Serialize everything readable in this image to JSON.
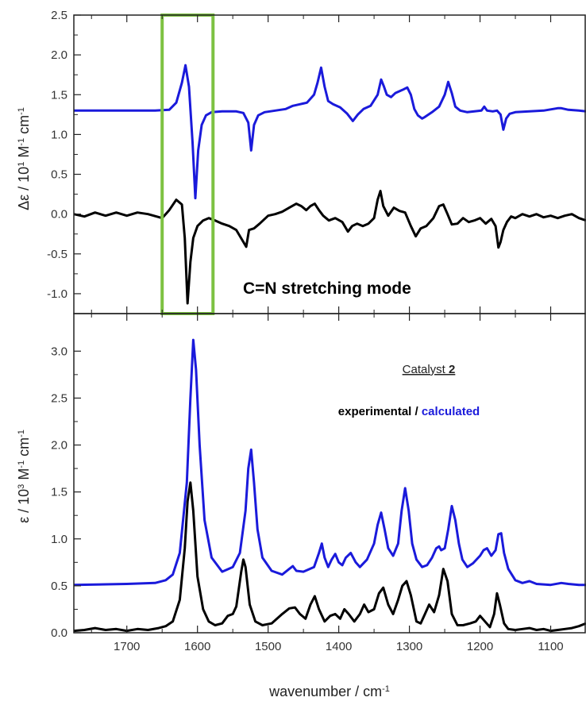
{
  "chart_data": [
    {
      "type": "line",
      "panel": "top",
      "ylabel": {
        "main": "Δε / 10",
        "sup1": "1",
        "mid": " M",
        "sup2": "-1",
        "end": " cm",
        "sup3": "-1"
      },
      "xlim": [
        1775,
        1050
      ],
      "ylim": [
        -1.25,
        2.5
      ],
      "y_ticks": [
        "2.5",
        "2.0",
        "1.5",
        "1.0",
        "0.5",
        "0.0",
        "-0.5",
        "-1.0"
      ],
      "y_tick_values": [
        2.5,
        2.0,
        1.5,
        1.0,
        0.5,
        0.0,
        -0.5,
        -1.0
      ],
      "annotation": "C=N stretching mode",
      "highlight_box": {
        "x_from": 1650,
        "x_to": 1578,
        "color": "#7dc242"
      },
      "series": [
        {
          "color": "#1a1adb",
          "x": [
            1775,
            1660,
            1640,
            1630,
            1622,
            1617,
            1612,
            1607,
            1603,
            1599,
            1594,
            1588,
            1580,
            1565,
            1545,
            1535,
            1528,
            1524,
            1520,
            1514,
            1505,
            1490,
            1475,
            1465,
            1455,
            1445,
            1435,
            1430,
            1425,
            1420,
            1415,
            1408,
            1398,
            1388,
            1380,
            1373,
            1365,
            1355,
            1345,
            1340,
            1336,
            1332,
            1326,
            1320,
            1310,
            1303,
            1298,
            1293,
            1288,
            1282,
            1278,
            1268,
            1258,
            1250,
            1245,
            1240,
            1235,
            1228,
            1218,
            1208,
            1198,
            1194,
            1190,
            1182,
            1176,
            1171,
            1167,
            1163,
            1158,
            1150,
            1130,
            1110,
            1090,
            1085,
            1075,
            1060,
            1050
          ],
          "y": [
            1.3,
            1.3,
            1.31,
            1.4,
            1.65,
            1.87,
            1.6,
            0.9,
            0.2,
            0.8,
            1.12,
            1.24,
            1.28,
            1.29,
            1.29,
            1.27,
            1.15,
            0.8,
            1.12,
            1.24,
            1.28,
            1.3,
            1.32,
            1.36,
            1.38,
            1.4,
            1.5,
            1.65,
            1.84,
            1.6,
            1.42,
            1.38,
            1.34,
            1.26,
            1.17,
            1.25,
            1.32,
            1.36,
            1.5,
            1.69,
            1.6,
            1.5,
            1.47,
            1.52,
            1.56,
            1.59,
            1.5,
            1.32,
            1.24,
            1.2,
            1.22,
            1.28,
            1.35,
            1.5,
            1.66,
            1.52,
            1.35,
            1.3,
            1.28,
            1.29,
            1.3,
            1.35,
            1.3,
            1.29,
            1.3,
            1.25,
            1.06,
            1.2,
            1.26,
            1.28,
            1.29,
            1.3,
            1.33,
            1.33,
            1.31,
            1.3,
            1.29
          ]
        },
        {
          "color": "#000000",
          "x": [
            1775,
            1760,
            1745,
            1730,
            1715,
            1700,
            1685,
            1670,
            1658,
            1650,
            1640,
            1630,
            1622,
            1618,
            1614,
            1610,
            1606,
            1600,
            1592,
            1584,
            1575,
            1565,
            1555,
            1545,
            1535,
            1531,
            1527,
            1520,
            1512,
            1500,
            1490,
            1480,
            1470,
            1460,
            1453,
            1446,
            1440,
            1434,
            1428,
            1422,
            1414,
            1405,
            1395,
            1387,
            1381,
            1374,
            1366,
            1358,
            1350,
            1345,
            1341,
            1337,
            1330,
            1322,
            1314,
            1306,
            1298,
            1291,
            1284,
            1276,
            1266,
            1258,
            1252,
            1246,
            1240,
            1232,
            1224,
            1216,
            1208,
            1200,
            1192,
            1184,
            1178,
            1174,
            1171,
            1167,
            1162,
            1156,
            1150,
            1140,
            1130,
            1120,
            1110,
            1100,
            1090,
            1080,
            1070,
            1060,
            1050
          ],
          "y": [
            0.0,
            -0.03,
            0.02,
            -0.02,
            0.02,
            -0.02,
            0.02,
            0.0,
            -0.03,
            -0.05,
            0.05,
            0.18,
            0.12,
            -0.3,
            -1.12,
            -0.6,
            -0.3,
            -0.15,
            -0.08,
            -0.05,
            -0.08,
            -0.12,
            -0.15,
            -0.2,
            -0.35,
            -0.41,
            -0.2,
            -0.18,
            -0.12,
            -0.02,
            0.0,
            0.03,
            0.08,
            0.13,
            0.1,
            0.05,
            0.1,
            0.13,
            0.05,
            -0.02,
            -0.08,
            -0.05,
            -0.1,
            -0.22,
            -0.15,
            -0.12,
            -0.15,
            -0.12,
            -0.05,
            0.18,
            0.29,
            0.1,
            -0.02,
            0.08,
            0.04,
            0.02,
            -0.15,
            -0.28,
            -0.18,
            -0.15,
            -0.05,
            0.1,
            0.12,
            0.0,
            -0.13,
            -0.12,
            -0.05,
            -0.1,
            -0.08,
            -0.05,
            -0.12,
            -0.06,
            -0.15,
            -0.42,
            -0.35,
            -0.2,
            -0.1,
            -0.03,
            -0.05,
            0.0,
            -0.03,
            0.0,
            -0.04,
            -0.02,
            -0.05,
            -0.02,
            0.0,
            -0.05,
            -0.08
          ]
        }
      ]
    },
    {
      "type": "line",
      "panel": "bottom",
      "ylabel": {
        "main": "ε / 10",
        "sup1": "3",
        "mid": " M",
        "sup2": "-1",
        "end": " cm",
        "sup3": "-1"
      },
      "xlabel": {
        "main": "wavenumber / cm",
        "sup": "-1"
      },
      "xlim": [
        1775,
        1050
      ],
      "ylim": [
        0.0,
        3.4
      ],
      "x_ticks": [
        "1700",
        "1600",
        "1500",
        "1400",
        "1300",
        "1200",
        "1100"
      ],
      "x_tick_values": [
        1700,
        1600,
        1500,
        1400,
        1300,
        1200,
        1100
      ],
      "y_ticks": [
        "3.0",
        "2.5",
        "2.0",
        "1.5",
        "1.0",
        "0.5",
        "0.0"
      ],
      "y_tick_values": [
        3.0,
        2.5,
        2.0,
        1.5,
        1.0,
        0.5,
        0.0
      ],
      "legend_title_prefix": "Catalyst ",
      "legend_title_num": "2",
      "legend_exp": "experimental",
      "legend_sep": " / ",
      "legend_calc": "calculated",
      "series": [
        {
          "name": "calculated",
          "color": "#1a1adb",
          "x": [
            1775,
            1700,
            1660,
            1645,
            1635,
            1625,
            1615,
            1610,
            1606,
            1602,
            1597,
            1590,
            1580,
            1565,
            1550,
            1540,
            1532,
            1528,
            1524,
            1520,
            1515,
            1508,
            1495,
            1480,
            1470,
            1465,
            1460,
            1450,
            1435,
            1428,
            1424,
            1420,
            1415,
            1410,
            1405,
            1400,
            1395,
            1390,
            1383,
            1376,
            1370,
            1360,
            1350,
            1345,
            1340,
            1335,
            1330,
            1323,
            1316,
            1311,
            1306,
            1301,
            1296,
            1290,
            1282,
            1275,
            1268,
            1262,
            1258,
            1255,
            1250,
            1245,
            1240,
            1235,
            1230,
            1225,
            1218,
            1210,
            1200,
            1195,
            1190,
            1184,
            1178,
            1174,
            1170,
            1166,
            1160,
            1150,
            1140,
            1130,
            1120,
            1100,
            1085,
            1075,
            1060,
            1050
          ],
          "y": [
            0.51,
            0.52,
            0.53,
            0.56,
            0.62,
            0.85,
            1.6,
            2.5,
            3.12,
            2.8,
            2.0,
            1.2,
            0.8,
            0.65,
            0.7,
            0.85,
            1.3,
            1.75,
            1.95,
            1.6,
            1.1,
            0.8,
            0.66,
            0.62,
            0.68,
            0.71,
            0.66,
            0.65,
            0.7,
            0.85,
            0.95,
            0.8,
            0.7,
            0.78,
            0.84,
            0.75,
            0.72,
            0.8,
            0.85,
            0.75,
            0.7,
            0.78,
            0.95,
            1.15,
            1.28,
            1.1,
            0.9,
            0.82,
            0.95,
            1.3,
            1.54,
            1.3,
            0.95,
            0.78,
            0.7,
            0.72,
            0.8,
            0.9,
            0.92,
            0.88,
            0.9,
            1.1,
            1.35,
            1.2,
            0.95,
            0.78,
            0.7,
            0.74,
            0.82,
            0.88,
            0.9,
            0.82,
            0.88,
            1.05,
            1.06,
            0.85,
            0.68,
            0.56,
            0.53,
            0.55,
            0.52,
            0.51,
            0.53,
            0.52,
            0.51,
            0.51
          ]
        },
        {
          "name": "experimental",
          "color": "#000000",
          "x": [
            1775,
            1760,
            1745,
            1730,
            1715,
            1700,
            1685,
            1670,
            1655,
            1645,
            1635,
            1625,
            1618,
            1614,
            1610,
            1606,
            1600,
            1592,
            1584,
            1575,
            1565,
            1557,
            1550,
            1545,
            1538,
            1535,
            1532,
            1526,
            1518,
            1508,
            1495,
            1480,
            1470,
            1462,
            1455,
            1447,
            1440,
            1434,
            1428,
            1420,
            1412,
            1405,
            1398,
            1392,
            1386,
            1378,
            1370,
            1364,
            1358,
            1350,
            1343,
            1337,
            1330,
            1323,
            1316,
            1310,
            1304,
            1298,
            1290,
            1284,
            1278,
            1272,
            1265,
            1258,
            1252,
            1246,
            1240,
            1232,
            1224,
            1214,
            1206,
            1200,
            1193,
            1186,
            1180,
            1176,
            1172,
            1166,
            1160,
            1150,
            1140,
            1130,
            1120,
            1110,
            1100,
            1090,
            1080,
            1070,
            1060,
            1050
          ],
          "y": [
            0.02,
            0.03,
            0.05,
            0.03,
            0.04,
            0.02,
            0.04,
            0.03,
            0.05,
            0.07,
            0.12,
            0.35,
            0.9,
            1.4,
            1.6,
            1.3,
            0.6,
            0.25,
            0.12,
            0.08,
            0.1,
            0.18,
            0.2,
            0.28,
            0.65,
            0.78,
            0.7,
            0.3,
            0.12,
            0.08,
            0.1,
            0.2,
            0.26,
            0.27,
            0.2,
            0.15,
            0.3,
            0.39,
            0.25,
            0.12,
            0.18,
            0.2,
            0.15,
            0.25,
            0.2,
            0.12,
            0.2,
            0.3,
            0.22,
            0.25,
            0.42,
            0.48,
            0.3,
            0.2,
            0.35,
            0.5,
            0.55,
            0.4,
            0.12,
            0.1,
            0.2,
            0.3,
            0.22,
            0.4,
            0.68,
            0.55,
            0.2,
            0.08,
            0.08,
            0.1,
            0.12,
            0.18,
            0.12,
            0.06,
            0.2,
            0.42,
            0.3,
            0.1,
            0.04,
            0.03,
            0.04,
            0.05,
            0.03,
            0.04,
            0.02,
            0.03,
            0.04,
            0.05,
            0.07,
            0.1
          ]
        }
      ]
    }
  ]
}
